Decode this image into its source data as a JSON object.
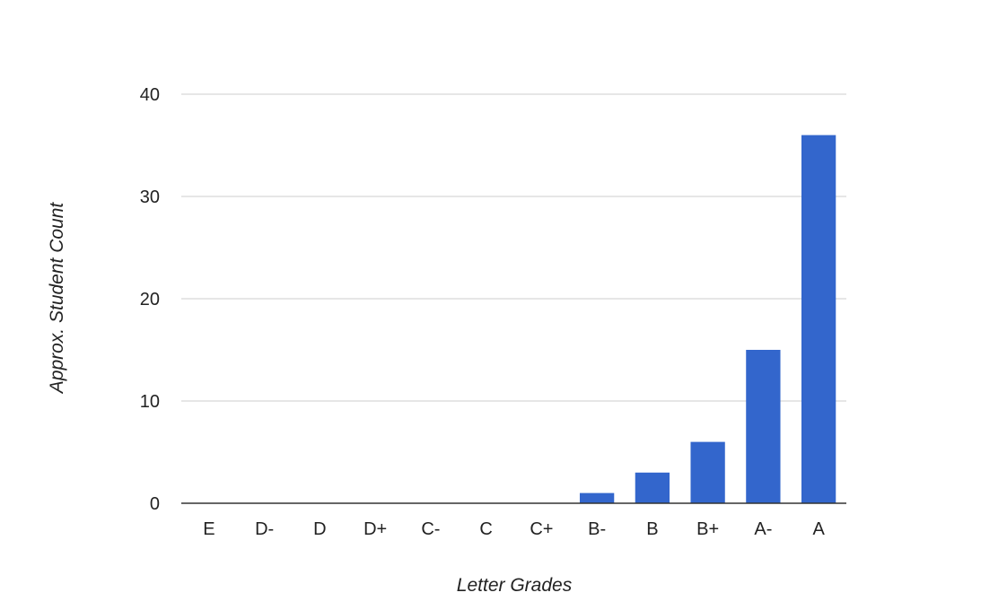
{
  "chart_data": {
    "type": "bar",
    "title": "",
    "xlabel": "Letter Grades",
    "ylabel": "Approx. Student Count",
    "categories": [
      "E",
      "D-",
      "D",
      "D+",
      "C-",
      "C",
      "C+",
      "B-",
      "B",
      "B+",
      "A-",
      "A"
    ],
    "values": [
      0,
      0,
      0,
      0,
      0,
      0,
      0,
      1,
      3,
      6,
      15,
      36
    ],
    "ylim": [
      0,
      40
    ],
    "yticks": [
      "0",
      "10",
      "20",
      "30",
      "40"
    ],
    "grid": true,
    "legend": "none",
    "bar_color": "#3366cc",
    "grid_color": "#cccccc",
    "axis_color": "#333333"
  }
}
